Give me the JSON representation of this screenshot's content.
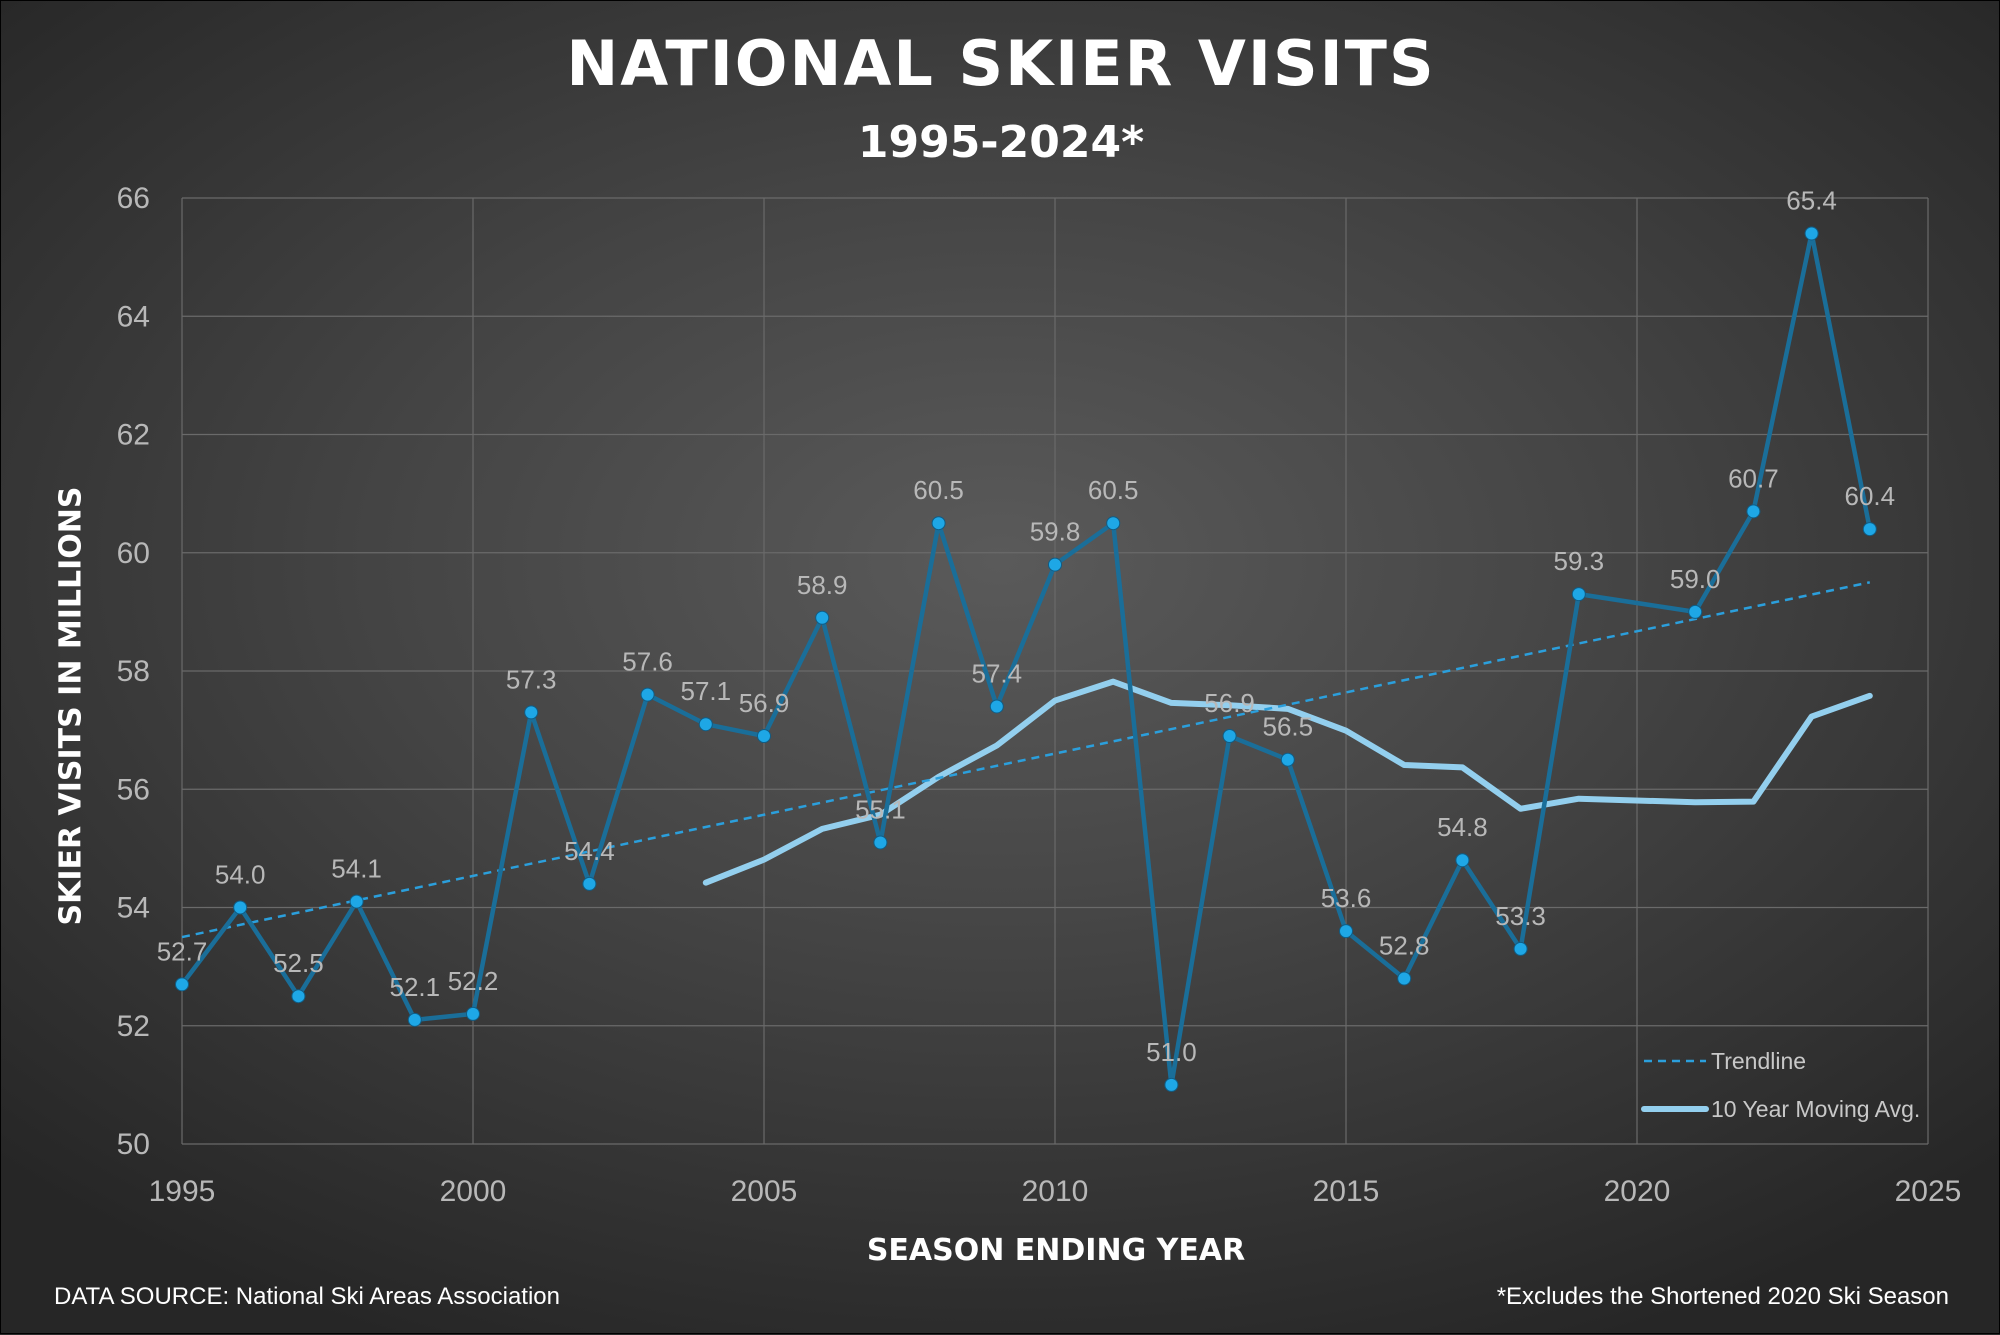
{
  "colors": {
    "visits_line": "#1a6e99",
    "visits_marker": "#1ea7e6",
    "trendline": "#2b9fdc",
    "moving_avg": "#93cfee",
    "grid": "#6a6a6a",
    "text_light": "#ffffff",
    "text_muted": "#b8b8b8"
  },
  "chart_data": {
    "type": "line",
    "title": "NATIONAL SKIER VISITS",
    "subtitle": "1995-2024*",
    "xlabel": "SEASON ENDING YEAR",
    "ylabel": "SKIER VISITS IN MILLIONS",
    "xlim": [
      1995,
      2025
    ],
    "ylim": [
      50,
      66
    ],
    "x_ticks": [
      "1995",
      "2000",
      "2005",
      "2010",
      "2015",
      "2020",
      "2025"
    ],
    "y_ticks": [
      "50",
      "52",
      "54",
      "56",
      "58",
      "60",
      "62",
      "64",
      "66"
    ],
    "grid": true,
    "legend_position": "bottom-right",
    "series": [
      {
        "name": "",
        "style": "line-with-markers",
        "x": [
          1995,
          1996,
          1997,
          1998,
          1999,
          2000,
          2001,
          2002,
          2003,
          2004,
          2005,
          2006,
          2007,
          2008,
          2009,
          2010,
          2011,
          2012,
          2013,
          2014,
          2015,
          2016,
          2017,
          2018,
          2019,
          2021,
          2022,
          2023,
          2024
        ],
        "values": [
          52.7,
          54.0,
          52.5,
          54.1,
          52.1,
          52.2,
          57.3,
          54.4,
          57.6,
          57.1,
          56.9,
          58.9,
          55.1,
          60.5,
          57.4,
          59.8,
          60.5,
          51.0,
          56.9,
          56.5,
          53.6,
          52.8,
          54.8,
          53.3,
          59.3,
          59.0,
          60.7,
          65.4,
          60.4
        ],
        "labels": [
          "52.7",
          "54.0",
          "52.5",
          "54.1",
          "52.1",
          "52.2",
          "57.3",
          "54.4",
          "57.6",
          "57.1",
          "56.9",
          "58.9",
          "55.1",
          "60.5",
          "57.4",
          "59.8",
          "60.5",
          "51.0",
          "56.9",
          "56.5",
          "53.6",
          "52.8",
          "54.8",
          "53.3",
          "59.3",
          "59.0",
          "60.7",
          "65.4",
          "60.4"
        ]
      },
      {
        "name": "10 Year Moving Avg.",
        "style": "thick-line",
        "x": [
          2004,
          2005,
          2006,
          2007,
          2008,
          2009,
          2010,
          2011,
          2012,
          2013,
          2014,
          2015,
          2016,
          2017,
          2018,
          2019,
          2021,
          2022,
          2023,
          2024
        ],
        "values": [
          54.42,
          54.81,
          55.33,
          55.57,
          56.21,
          56.74,
          57.5,
          57.82,
          57.46,
          57.42,
          57.36,
          56.99,
          56.41,
          56.37,
          55.67,
          55.84,
          55.78,
          55.79,
          57.23,
          57.58
        ]
      },
      {
        "name": "Trendline",
        "style": "dashed",
        "x": [
          1995,
          2024
        ],
        "values": [
          53.5,
          59.5
        ]
      }
    ]
  },
  "footer": {
    "source": "DATA SOURCE: National Ski Areas Association",
    "note": "*Excludes the Shortened 2020 Ski Season"
  }
}
